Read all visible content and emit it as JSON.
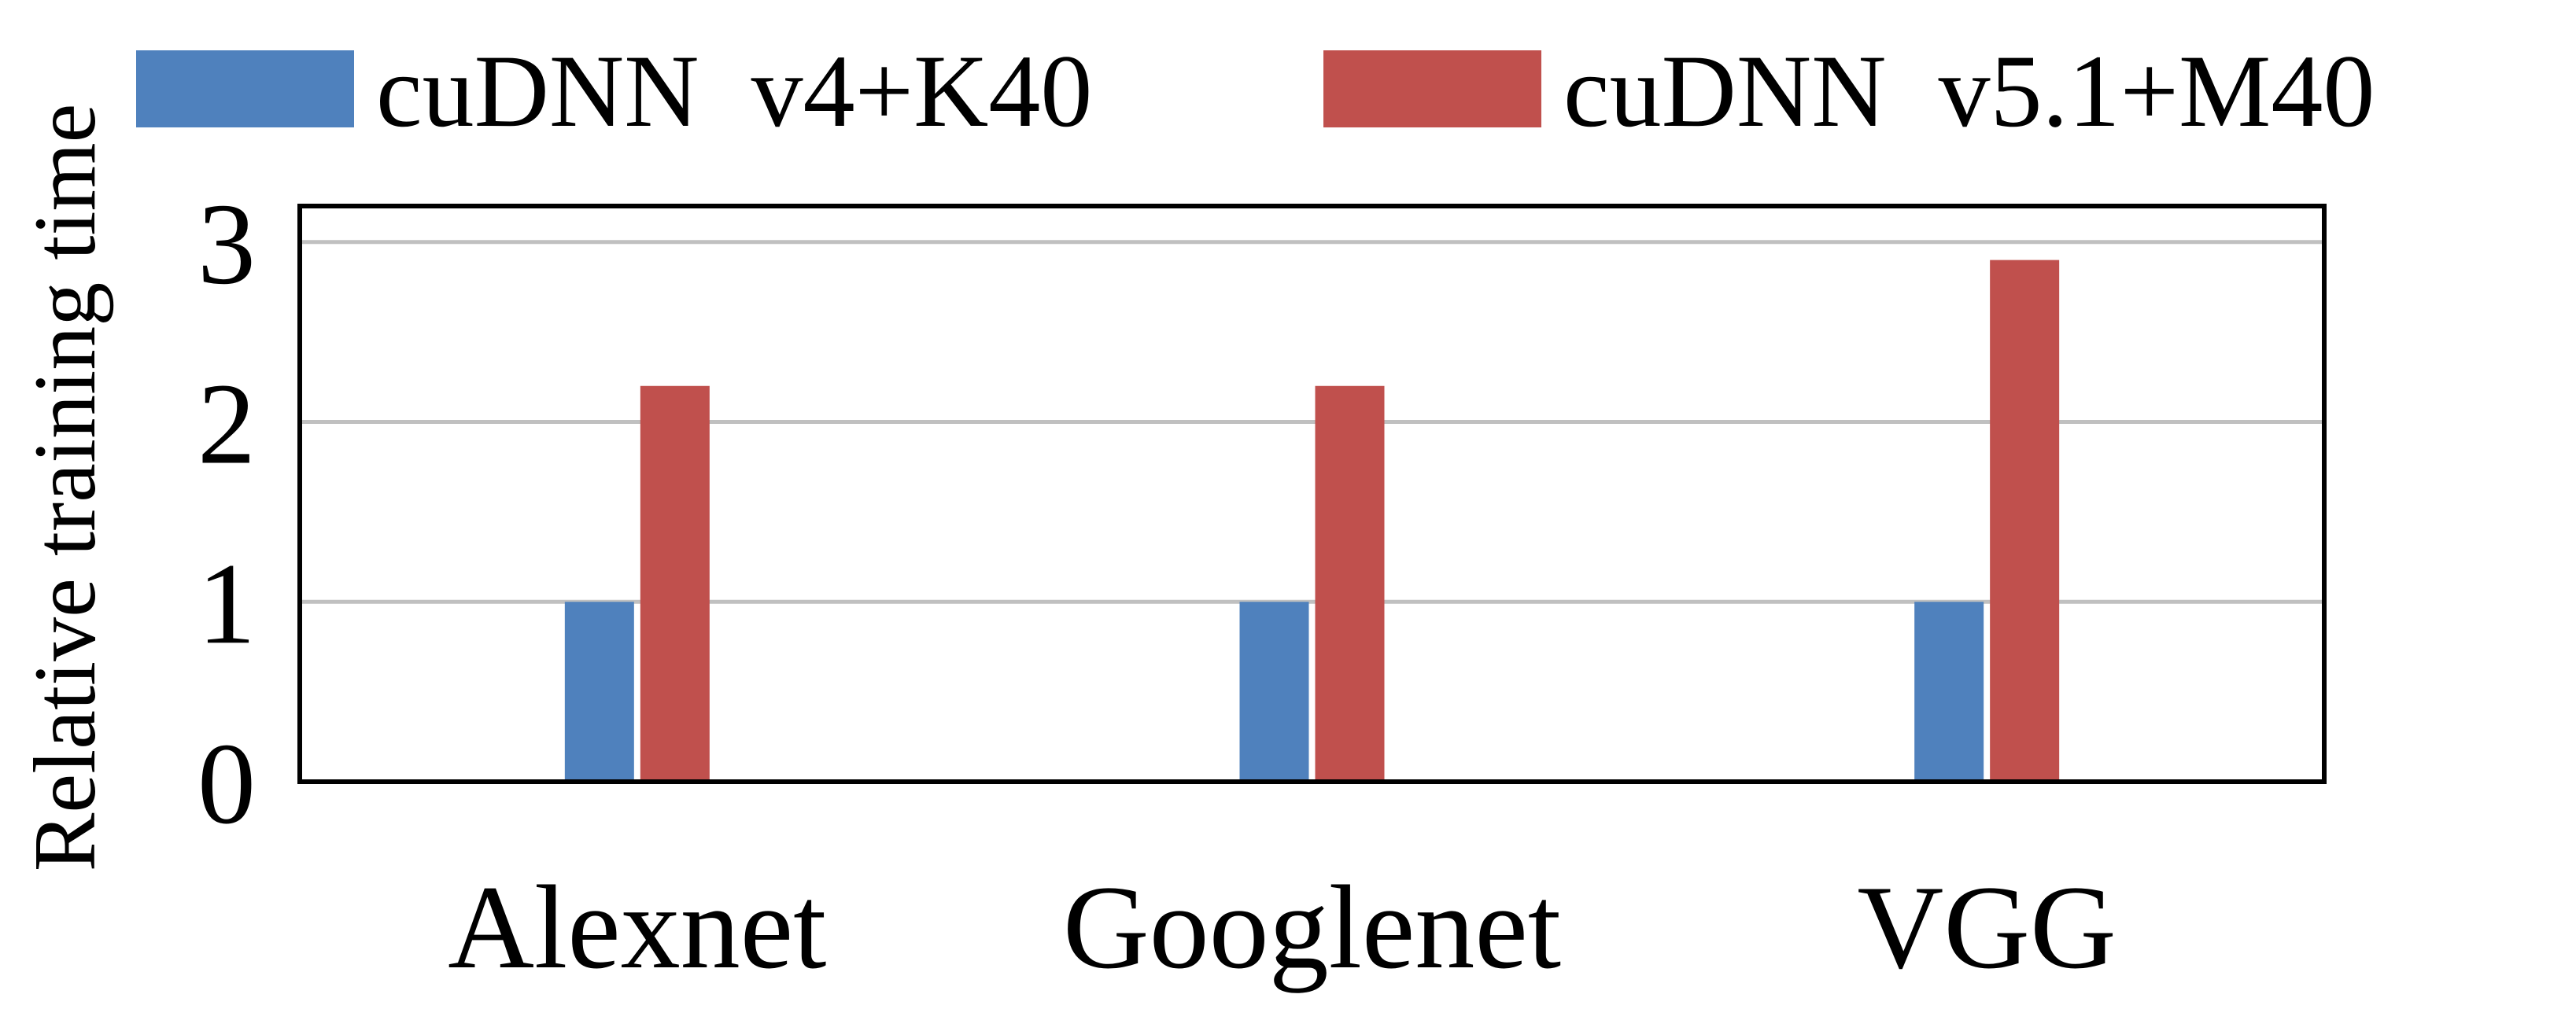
{
  "chart_data": {
    "type": "bar",
    "title": "",
    "xlabel": "",
    "ylabel": "Relative training time",
    "categories": [
      "Alexnet",
      "Googlenet",
      "VGG"
    ],
    "series": [
      {
        "name": "cuDNN  v4+K40",
        "color": "#4f81bd",
        "values": [
          1.0,
          1.0,
          1.0
        ]
      },
      {
        "name": "cuDNN  v5.1+M40",
        "color": "#c0504d",
        "values": [
          2.2,
          2.2,
          2.9
        ]
      }
    ],
    "ylim": [
      0,
      3.2
    ],
    "yticks": [
      0,
      1,
      2,
      3
    ],
    "ytick_labels": [
      "0",
      "1",
      "2",
      "3"
    ],
    "grid": true,
    "legend_position": "top"
  }
}
